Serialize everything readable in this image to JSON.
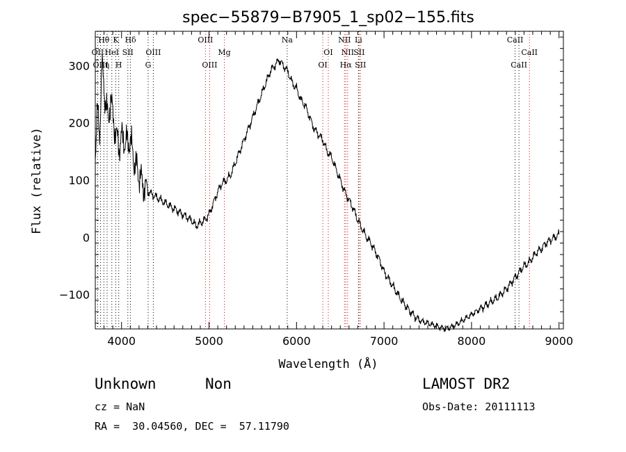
{
  "chart_data": {
    "type": "line",
    "title": "spec−55879−B7905_1_sp02−155.fits",
    "xlabel": "Wavelength (Å)",
    "ylabel": "Flux (relative)",
    "xlim": [
      3700,
      9050
    ],
    "ylim": [
      -160,
      360
    ],
    "xticks": [
      4000,
      5000,
      6000,
      7000,
      8000,
      9000
    ],
    "yticks": [
      -100,
      0,
      100,
      200,
      300
    ],
    "series": [
      {
        "x": [
          3700,
          3725,
          3750,
          3775,
          3800,
          3825,
          3850,
          3875,
          3900,
          3925,
          3950,
          3975,
          4000,
          4050,
          4100,
          4150,
          4200,
          4250,
          4300,
          4350,
          4400,
          4450,
          4500,
          4550,
          4600,
          4650,
          4700,
          4750,
          4800,
          4850,
          4900,
          4950,
          5000,
          5050,
          5100,
          5150,
          5200,
          5250,
          5300,
          5350,
          5400,
          5450,
          5500,
          5550,
          5600,
          5650,
          5700,
          5750,
          5800,
          5850,
          5900,
          5950,
          6000,
          6050,
          6100,
          6150,
          6200,
          6250,
          6300,
          6350,
          6400,
          6450,
          6500,
          6550,
          6600,
          6650,
          6700,
          6750,
          6800,
          6850,
          6900,
          6950,
          7000,
          7100,
          7200,
          7300,
          7400,
          7500,
          7600,
          7700,
          7800,
          7900,
          8000,
          8100,
          8200,
          8300,
          8400,
          8450,
          8500,
          8550,
          8600,
          8650,
          8700,
          8750,
          8800,
          8850,
          8900,
          8950,
          9000
        ],
        "y": [
          150,
          220,
          180,
          300,
          260,
          230,
          200,
          250,
          210,
          190,
          170,
          160,
          175,
          165,
          170,
          130,
          110,
          90,
          80,
          75,
          70,
          65,
          60,
          55,
          50,
          45,
          40,
          35,
          30,
          20,
          25,
          30,
          40,
          60,
          80,
          95,
          100,
          110,
          130,
          150,
          170,
          190,
          210,
          230,
          250,
          270,
          290,
          300,
          310,
          300,
          290,
          270,
          260,
          240,
          230,
          210,
          190,
          180,
          170,
          150,
          140,
          120,
          100,
          80,
          65,
          50,
          30,
          15,
          0,
          -10,
          -25,
          -40,
          -60,
          -85,
          -110,
          -130,
          -145,
          -150,
          -155,
          -160,
          -155,
          -145,
          -135,
          -125,
          -115,
          -105,
          -90,
          -80,
          -70,
          -60,
          -50,
          -45,
          -35,
          -25,
          -20,
          -10,
          -5,
          0,
          5
        ]
      }
    ],
    "lines": [
      {
        "label": "Hθ",
        "x": 3798,
        "row": 0,
        "color": "#000000",
        "style": "dotted"
      },
      {
        "label": "K",
        "x": 3934,
        "row": 0,
        "color": "#000000",
        "style": "dotted"
      },
      {
        "label": "Hδ",
        "x": 4102,
        "row": 0,
        "color": "#000000",
        "style": "dotted"
      },
      {
        "label": "OII",
        "x": 3727,
        "row": 1,
        "color": "#000000",
        "style": "dotted"
      },
      {
        "label": "HeI",
        "x": 3889,
        "row": 1,
        "color": "#000000",
        "style": "dotted"
      },
      {
        "label": "SII",
        "x": 4072,
        "row": 1,
        "color": "#000000",
        "style": "dotted"
      },
      {
        "label": "OIII",
        "x": 4363,
        "row": 1,
        "color": "#000000",
        "style": "dotted"
      },
      {
        "label": "OIII",
        "x": 3760,
        "row": 2,
        "color": "#000000",
        "style": "dotted"
      },
      {
        "label": "η",
        "x": 3835,
        "row": 2,
        "color": "#000000",
        "style": "dotted"
      },
      {
        "label": "H",
        "x": 3968,
        "row": 2,
        "color": "#000000",
        "style": "dotted"
      },
      {
        "label": "G",
        "x": 4304,
        "row": 2,
        "color": "#000000",
        "style": "dotted"
      },
      {
        "label": "OIII",
        "x": 4959,
        "row": 0,
        "color": "#cc0000",
        "style": "dotted"
      },
      {
        "label": "OIII",
        "x": 5007,
        "row": 2,
        "color": "#cc0000",
        "style": "dotted"
      },
      {
        "label": "Mg",
        "x": 5175,
        "row": 1,
        "color": "#cc0000",
        "style": "dotted"
      },
      {
        "label": "Na",
        "x": 5893,
        "row": 0,
        "color": "#000000",
        "style": "dotted"
      },
      {
        "label": "OI",
        "x": 6300,
        "row": 2,
        "color": "#cc0000",
        "style": "dotted"
      },
      {
        "label": "OI",
        "x": 6363,
        "row": 1,
        "color": "#cc0000",
        "style": "dotted"
      },
      {
        "label": "NII",
        "x": 6548,
        "row": 0,
        "color": "#cc0000",
        "style": "dotted"
      },
      {
        "label": "NII",
        "x": 6584,
        "row": 1,
        "color": "#cc0000",
        "style": "dotted"
      },
      {
        "label": "Hα",
        "x": 6563,
        "row": 2,
        "color": "#cc0000",
        "style": "dotted"
      },
      {
        "label": "Li",
        "x": 6708,
        "row": 0,
        "color": "#000000",
        "style": "dotted"
      },
      {
        "label": "SII",
        "x": 6716,
        "row": 1,
        "color": "#cc0000",
        "style": "dotted"
      },
      {
        "label": "SII",
        "x": 6731,
        "row": 2,
        "color": "#cc0000",
        "style": "dotted"
      },
      {
        "label": "CaII",
        "x": 8498,
        "row": 0,
        "color": "#000000",
        "style": "dotted"
      },
      {
        "label": "CaII",
        "x": 8542,
        "row": 2,
        "color": "#000000",
        "style": "dotted"
      },
      {
        "label": "CaII",
        "x": 8662,
        "row": 1,
        "color": "#cc0000",
        "style": "dotted"
      }
    ]
  },
  "info": {
    "class": "Unknown",
    "subclass": "Non",
    "survey": "LAMOST DR2",
    "cz": "cz = NaN",
    "obs_date": "Obs-Date: 20111113",
    "coords": "RA =  30.04560, DEC =  57.11790"
  }
}
